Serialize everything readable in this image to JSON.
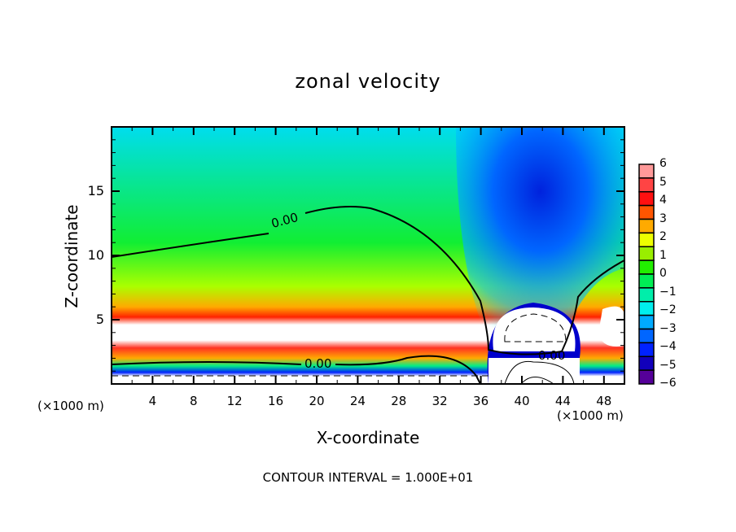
{
  "chart_data": {
    "type": "heatmap",
    "title": "zonal velocity",
    "xlabel": "X-coordinate",
    "ylabel": "Z-coordinate",
    "x_unit_left": "(×1000 m)",
    "x_unit_right": "(×1000 m)",
    "xlim": [
      0,
      50
    ],
    "ylim": [
      0,
      20
    ],
    "x_ticks": [
      "4",
      "8",
      "12",
      "16",
      "20",
      "24",
      "28",
      "32",
      "36",
      "40",
      "44",
      "48"
    ],
    "y_ticks": [
      "5",
      "10",
      "15"
    ],
    "colorbar": {
      "ticks": [
        "6",
        "5",
        "4",
        "3",
        "2",
        "1",
        "0",
        "−1",
        "−2",
        "−3",
        "−4",
        "−5",
        "−6"
      ],
      "range": [
        -6,
        6
      ],
      "colors": [
        "#ff9999",
        "#ff4444",
        "#ff1010",
        "#ff5500",
        "#ffaa00",
        "#eeff00",
        "#99ee00",
        "#22ee00",
        "#00ee55",
        "#00eeaa",
        "#00eeee",
        "#00aaff",
        "#0066ff",
        "#0022ff",
        "#1100bb",
        "#550099"
      ]
    },
    "contour_labels": [
      "0.00",
      "0.00",
      "0.00"
    ],
    "contour_interval": "CONTOUR INTERVAL = 1.000E+01"
  }
}
